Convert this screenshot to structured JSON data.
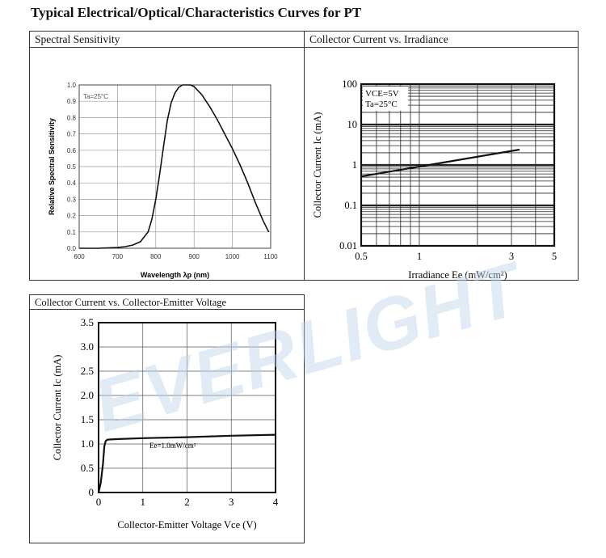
{
  "page_title": "Typical Electrical/Optical/Characteristics Curves for PT",
  "watermark": "EVERLIGHT",
  "chart_data": [
    {
      "type": "line",
      "panel_title": "Spectral Sensitivity",
      "title": "",
      "xlabel": "Wavelength λp (nm)",
      "ylabel": "Relative Spectral Sensitivity",
      "annotation": "Ta=25°C",
      "xlim": [
        600,
        1100
      ],
      "ylim": [
        0,
        1.0
      ],
      "x_ticks": [
        600,
        700,
        800,
        900,
        1000,
        1100
      ],
      "y_ticks": [
        0.0,
        0.1,
        0.2,
        0.3,
        0.4,
        0.5,
        0.6,
        0.7,
        0.8,
        0.9,
        1.0
      ],
      "y_tick_labels": [
        "0.0",
        "0.1",
        "0.2",
        "0.3",
        "0.4",
        "0.5",
        "0.6",
        "0.7",
        "0.8",
        "0.9",
        "1.0"
      ],
      "grid": true,
      "series": [
        {
          "x": [
            600,
            650,
            700,
            720,
            740,
            760,
            780,
            790,
            800,
            810,
            820,
            830,
            840,
            850,
            860,
            870,
            880,
            890,
            900,
            920,
            940,
            960,
            980,
            1000,
            1020,
            1040,
            1060,
            1080,
            1095
          ],
          "y": [
            0,
            0,
            0.005,
            0.01,
            0.02,
            0.04,
            0.1,
            0.18,
            0.3,
            0.45,
            0.62,
            0.78,
            0.89,
            0.95,
            0.985,
            1.0,
            1.0,
            1.0,
            0.99,
            0.94,
            0.87,
            0.79,
            0.7,
            0.61,
            0.51,
            0.4,
            0.28,
            0.17,
            0.1
          ]
        }
      ]
    },
    {
      "type": "line",
      "panel_title": "Collector Current vs. Irradiance",
      "title": "",
      "xlabel": "Irradiance Ee (mW/cm²)",
      "ylabel": "Collector Current Ic (mA)",
      "annotation_lines": [
        "VCE=5V",
        "Ta=25°C"
      ],
      "x_scale": "log",
      "y_scale": "log",
      "xlim": [
        0.5,
        5
      ],
      "ylim": [
        0.01,
        100
      ],
      "x_ticks": [
        0.5,
        1,
        3,
        5
      ],
      "x_tick_labels": [
        "0.5",
        "1",
        "3",
        "5"
      ],
      "y_ticks": [
        0.01,
        0.1,
        1,
        10,
        100
      ],
      "y_tick_labels": [
        "0.01",
        "0.1",
        "1",
        "10",
        "100"
      ],
      "grid": true,
      "series": [
        {
          "x": [
            0.5,
            3.3
          ],
          "y": [
            0.52,
            2.4
          ]
        }
      ]
    },
    {
      "type": "line",
      "panel_title": "Collector Current vs. Collector-Emitter Voltage",
      "title": "",
      "xlabel": "Collector-Emitter Voltage Vce (V)",
      "ylabel": "Collector Current Ic (mA)",
      "curve_label": "Ee=1.0mW/cm²",
      "xlim": [
        0,
        4
      ],
      "ylim": [
        0,
        3.5
      ],
      "x_ticks": [
        0,
        1,
        2,
        3,
        4
      ],
      "y_ticks": [
        0,
        0.5,
        1.0,
        1.5,
        2.0,
        2.5,
        3.0,
        3.5
      ],
      "y_tick_labels": [
        "0",
        "0.5",
        "1.0",
        "1.5",
        "2.0",
        "2.5",
        "3.0",
        "3.5"
      ],
      "grid": true,
      "series": [
        {
          "x": [
            0,
            0.05,
            0.1,
            0.13,
            0.16,
            0.2,
            0.4,
            1,
            2,
            3,
            4
          ],
          "y": [
            0,
            0.2,
            0.6,
            0.95,
            1.06,
            1.09,
            1.1,
            1.12,
            1.14,
            1.17,
            1.19
          ]
        }
      ]
    }
  ]
}
